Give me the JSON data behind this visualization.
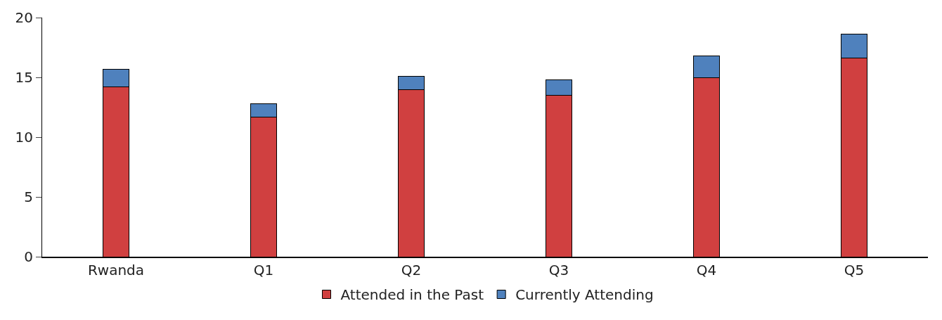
{
  "chart_data": {
    "type": "bar",
    "stacked": true,
    "categories": [
      "Rwanda",
      "Q1",
      "Q2",
      "Q3",
      "Q4",
      "Q5"
    ],
    "series": [
      {
        "name": "Attended in the Past",
        "color": "#d04040",
        "values": [
          14.2,
          11.7,
          14.0,
          13.5,
          15.0,
          16.6
        ]
      },
      {
        "name": "Currently Attending",
        "color": "#4f81bd",
        "values": [
          1.5,
          1.1,
          1.1,
          1.3,
          1.8,
          2.0
        ]
      }
    ],
    "ylim": [
      0,
      20
    ],
    "yticks": [
      0,
      5,
      10,
      15,
      20
    ],
    "legend": "bottom"
  }
}
